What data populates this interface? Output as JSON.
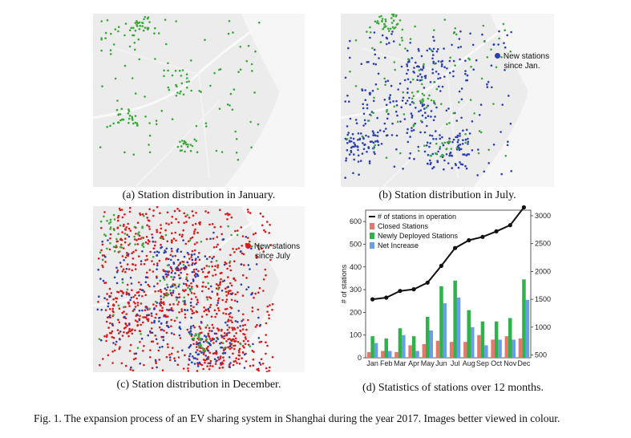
{
  "panels": {
    "a": {
      "caption": "(a) Station distribution in January."
    },
    "b": {
      "caption": "(b) Station distribution in July.",
      "legend": [
        "New stations",
        "since Jan."
      ],
      "legend_color": "#2a3fb0"
    },
    "c": {
      "caption": "(c) Station distribution in December.",
      "legend": [
        "New stations",
        "since July"
      ],
      "legend_color": "#d91a1a"
    },
    "d": {
      "caption": "(d) Statistics of stations over 12 months."
    }
  },
  "colors": {
    "map_bg": "#ececec",
    "january": "#3aa83a",
    "july_new": "#2a3fb0",
    "dec_new": "#d91a1a"
  },
  "figure_caption": "Fig. 1.  The expansion process of an EV sharing system in Shanghai during the year 2017. Images better viewed in colour.",
  "chart_data": {
    "type": "bar",
    "categories": [
      "Jan",
      "Feb",
      "Mar",
      "Apr",
      "May",
      "Jun",
      "Jul",
      "Aug",
      "Sep",
      "Oct",
      "Nov",
      "Dec"
    ],
    "ylabel": "# of stations",
    "left_axis": {
      "ylim": [
        0,
        650
      ],
      "ticks": [
        0,
        100,
        200,
        300,
        400,
        500,
        600
      ]
    },
    "right_axis": {
      "ylim": [
        450,
        3100
      ],
      "ticks": [
        500,
        1000,
        1500,
        2000,
        2500,
        3000
      ]
    },
    "series": [
      {
        "name": "Closed Stations",
        "axis": "left",
        "color": "#e8766a",
        "values": [
          25,
          30,
          25,
          55,
          60,
          75,
          70,
          70,
          100,
          80,
          95,
          85
        ]
      },
      {
        "name": "Newly Deployed Stations",
        "axis": "left",
        "color": "#2db34a",
        "values": [
          95,
          85,
          130,
          95,
          180,
          315,
          340,
          210,
          160,
          160,
          175,
          345
        ]
      },
      {
        "name": "Net Increase",
        "axis": "left",
        "color": "#6a9ee8",
        "values": [
          65,
          30,
          100,
          30,
          120,
          240,
          265,
          135,
          55,
          80,
          80,
          255
        ]
      },
      {
        "name": "# of stations in operation",
        "axis": "right",
        "color": "#111111",
        "type": "line",
        "values": [
          1500,
          1530,
          1650,
          1680,
          1800,
          2100,
          2420,
          2560,
          2620,
          2720,
          2830,
          3150
        ]
      }
    ]
  }
}
